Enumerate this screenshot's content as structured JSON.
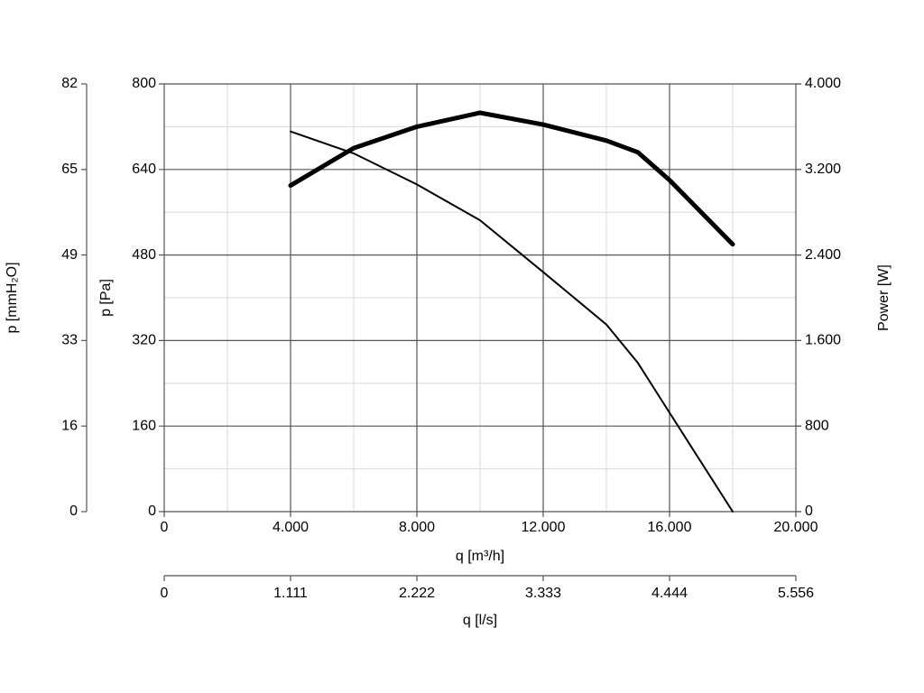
{
  "chart_data": {
    "type": "line",
    "x": [
      4000,
      6000,
      8000,
      10000,
      12000,
      14000,
      15000,
      16000,
      18000
    ],
    "series": [
      {
        "name": "p",
        "color": "#000000",
        "axis": "y",
        "width": 2,
        "values": [
          711,
          670,
          612,
          545,
          448,
          350,
          278,
          185,
          0
        ]
      },
      {
        "name": "Power",
        "color": "#000000",
        "axis": "y2",
        "width": 5,
        "values": [
          3050,
          3400,
          3600,
          3730,
          3620,
          3470,
          3360,
          3100,
          2500
        ]
      }
    ],
    "xlabel": "q [m³/h]",
    "ylabel": "p [Pa]",
    "y2label": "Power [W]",
    "xlim": [
      0,
      20000
    ],
    "xticks": [
      0,
      {
        "value": 4000,
        "label": "4.000"
      },
      {
        "value": 8000,
        "label": "8.000"
      },
      {
        "value": 12000,
        "label": "12.000"
      },
      {
        "value": 16000,
        "label": "16.000"
      },
      {
        "value": 20000,
        "label": "20.000"
      }
    ],
    "ylim": [
      0,
      800
    ],
    "yticks": [
      0,
      160,
      320,
      480,
      640,
      800
    ],
    "y2lim": [
      0,
      4000
    ],
    "y2ticks": [
      0,
      800,
      {
        "value": 1600,
        "label": "1.600"
      },
      {
        "value": 2400,
        "label": "2.400"
      },
      {
        "value": 3200,
        "label": "3.200"
      },
      {
        "value": 4000,
        "label": "4.000"
      }
    ],
    "y3label": "p [mmH₂O]",
    "y3lim": [
      0,
      81.58
    ],
    "y3ticks": [
      0,
      {
        "value": 16.32,
        "label": "16"
      },
      {
        "value": 32.63,
        "label": "33"
      },
      {
        "value": 48.95,
        "label": "49"
      },
      {
        "value": 65.26,
        "label": "65"
      },
      {
        "value": 81.58,
        "label": "82"
      }
    ],
    "x2label": "q [l/s]",
    "x2lim": [
      0,
      5555.6
    ],
    "x2ticks": [
      0,
      {
        "value": 1111.1,
        "label": "1.111"
      },
      {
        "value": 2222.2,
        "label": "2.222"
      },
      {
        "value": 3333.3,
        "label": "3.333"
      },
      {
        "value": 4444.4,
        "label": "4.444"
      },
      {
        "value": 5555.6,
        "label": "5.556"
      }
    ],
    "grid": true,
    "minor_grid": true
  }
}
